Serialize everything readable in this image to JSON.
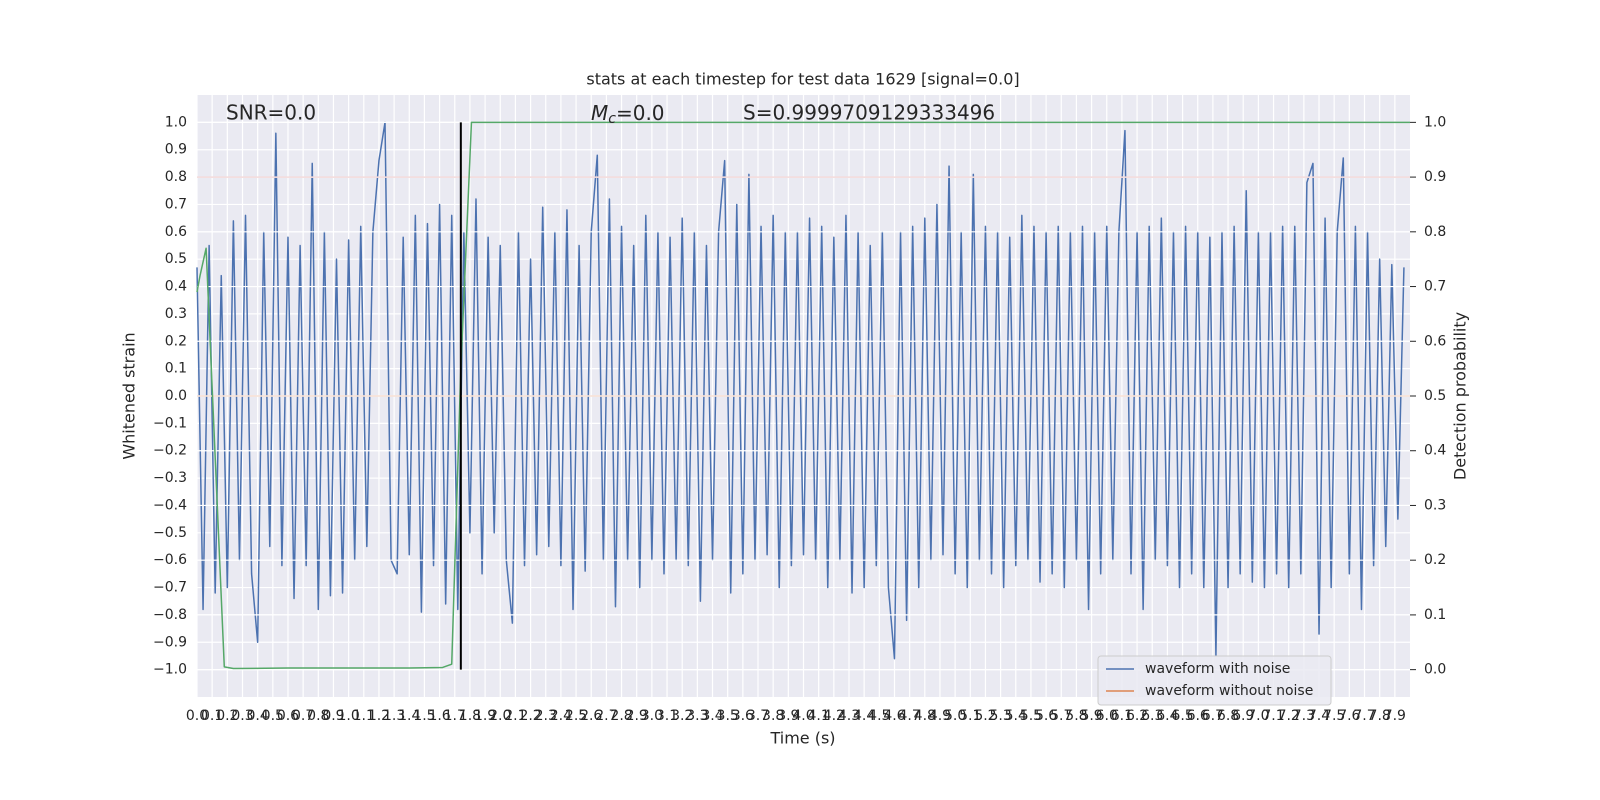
{
  "chart_data": {
    "type": "line",
    "title": "stats at each timestep for test data 1629 [signal=0.0]",
    "x_label": "Time (s)",
    "y_label": "Whitened strain",
    "y2_label": "Detection probability",
    "annotations": {
      "snr": "SNR=0.0",
      "mc_symbol": "M",
      "mc_subscript": "c",
      "mc_text": "=0.0",
      "score": "S=0.9999709129333496"
    },
    "xlim": [
      0,
      8.0
    ],
    "ylim": [
      -1.1,
      1.1
    ],
    "y2lim": [
      -0.05,
      1.05
    ],
    "grid": true,
    "legend": "lower right",
    "yticks": [
      {
        "value": -1,
        "label": "−1.0"
      },
      {
        "value": -0.9,
        "label": "−0.9"
      },
      {
        "value": -0.8,
        "label": "−0.8"
      },
      {
        "value": -0.7,
        "label": "−0.7"
      },
      {
        "value": -0.6,
        "label": "−0.6"
      },
      {
        "value": -0.5,
        "label": "−0.5"
      },
      {
        "value": -0.4,
        "label": "−0.4"
      },
      {
        "value": -0.3,
        "label": "−0.3"
      },
      {
        "value": -0.2,
        "label": "−0.2"
      },
      {
        "value": -0.1,
        "label": "−0.1"
      },
      {
        "value": 0,
        "label": "0.0"
      },
      0.1,
      0.2,
      0.3,
      0.4,
      0.5,
      0.6,
      0.7,
      0.8,
      0.9,
      {
        "value": 1,
        "label": "1.0"
      }
    ],
    "y2ticks": [
      {
        "value": 0,
        "label": "0.0"
      },
      0.1,
      0.2,
      0.3,
      0.4,
      0.5,
      0.6,
      0.7,
      0.8,
      0.9,
      {
        "value": 1,
        "label": "1.0"
      }
    ],
    "xticks": [
      {
        "value": 0,
        "label": "0.0"
      },
      0.1,
      0.2,
      0.3,
      0.4,
      0.5,
      0.6,
      0.7,
      0.8,
      0.9,
      {
        "value": 1,
        "label": "1.0"
      },
      1.1,
      1.2,
      1.3,
      1.4,
      1.5,
      1.6,
      1.7,
      1.8,
      1.9,
      {
        "value": 2,
        "label": "2.0"
      },
      2.1,
      2.2,
      2.3,
      2.4,
      2.5,
      2.6,
      2.7,
      2.8,
      2.9,
      {
        "value": 3,
        "label": "3.0"
      },
      3.1,
      3.2,
      3.3,
      3.4,
      3.5,
      3.6,
      3.7,
      3.8,
      3.9,
      {
        "value": 4,
        "label": "4.0"
      },
      4.1,
      4.2,
      4.3,
      4.4,
      4.5,
      4.6,
      4.7,
      4.8,
      4.9,
      {
        "value": 5,
        "label": "5.0"
      },
      5.1,
      5.2,
      5.3,
      5.4,
      5.5,
      5.6,
      5.7,
      5.8,
      5.9,
      {
        "value": 6,
        "label": "6.0"
      },
      6.1,
      6.2,
      6.3,
      6.4,
      6.5,
      6.6,
      6.7,
      6.8,
      6.9,
      {
        "value": 7,
        "label": "7.0"
      },
      7.1,
      7.2,
      7.3,
      7.4,
      7.5,
      7.6,
      7.7,
      7.8,
      7.9
    ],
    "series": [
      {
        "name": "waveform with noise",
        "color": "#4c72b0",
        "x": [
          0,
          0.04,
          0.08,
          0.12,
          0.16,
          0.2,
          0.24,
          0.28,
          0.32,
          0.36,
          0.4,
          0.44,
          0.48,
          0.52,
          0.56,
          0.6,
          0.64,
          0.68,
          0.72,
          0.76,
          0.8,
          0.84,
          0.88,
          0.92,
          0.96,
          1,
          1.04,
          1.08,
          1.12,
          1.16,
          1.2,
          1.24,
          1.28,
          1.32,
          1.36,
          1.4,
          1.44,
          1.48,
          1.52,
          1.56,
          1.6,
          1.64,
          1.68,
          1.72,
          1.76,
          1.8,
          1.84,
          1.88,
          1.92,
          1.96,
          2,
          2.04,
          2.08,
          2.12,
          2.16,
          2.2,
          2.24,
          2.28,
          2.32,
          2.36,
          2.4,
          2.44,
          2.48,
          2.52,
          2.56,
          2.6,
          2.64,
          2.68,
          2.72,
          2.76,
          2.8,
          2.84,
          2.88,
          2.92,
          2.96,
          3,
          3.04,
          3.08,
          3.12,
          3.16,
          3.2,
          3.24,
          3.28,
          3.32,
          3.36,
          3.4,
          3.44,
          3.48,
          3.52,
          3.56,
          3.6,
          3.64,
          3.68,
          3.72,
          3.76,
          3.8,
          3.84,
          3.88,
          3.92,
          3.96,
          4,
          4.04,
          4.08,
          4.12,
          4.16,
          4.2,
          4.24,
          4.28,
          4.32,
          4.36,
          4.4,
          4.44,
          4.48,
          4.52,
          4.56,
          4.6,
          4.64,
          4.68,
          4.72,
          4.76,
          4.8,
          4.84,
          4.88,
          4.92,
          4.96,
          5,
          5.04,
          5.08,
          5.12,
          5.16,
          5.2,
          5.24,
          5.28,
          5.32,
          5.36,
          5.4,
          5.44,
          5.48,
          5.52,
          5.56,
          5.6,
          5.64,
          5.68,
          5.72,
          5.76,
          5.8,
          5.84,
          5.88,
          5.92,
          5.96,
          6,
          6.04,
          6.08,
          6.12,
          6.16,
          6.2,
          6.24,
          6.28,
          6.32,
          6.36,
          6.4,
          6.44,
          6.48,
          6.52,
          6.56,
          6.6,
          6.64,
          6.68,
          6.72,
          6.76,
          6.8,
          6.84,
          6.88,
          6.92,
          6.96,
          7,
          7.04,
          7.08,
          7.12,
          7.16,
          7.2,
          7.24,
          7.28,
          7.32,
          7.36,
          7.4,
          7.44,
          7.48,
          7.52,
          7.56,
          7.6,
          7.64,
          7.68,
          7.72,
          7.76,
          7.8,
          7.84,
          7.88,
          7.92,
          7.96
        ],
        "values": [
          0.47,
          -0.78,
          0.55,
          -0.72,
          0.44,
          -0.7,
          0.64,
          -0.6,
          0.66,
          -0.65,
          -0.9,
          0.6,
          -0.55,
          0.96,
          -0.62,
          0.58,
          -0.74,
          0.55,
          -0.62,
          0.85,
          -0.78,
          0.6,
          -0.73,
          0.5,
          -0.72,
          0.57,
          -0.6,
          0.62,
          -0.55,
          0.6,
          0.86,
          1.0,
          -0.6,
          -0.65,
          0.58,
          -0.58,
          0.66,
          -0.79,
          0.63,
          -0.62,
          0.7,
          -0.76,
          0.66,
          -0.78,
          0.6,
          -0.5,
          0.72,
          -0.65,
          0.58,
          -0.5,
          0.55,
          -0.6,
          -0.83,
          0.6,
          -0.62,
          0.5,
          -0.58,
          0.69,
          -0.55,
          0.6,
          -0.62,
          0.68,
          -0.78,
          0.55,
          -0.64,
          0.6,
          0.88,
          -0.6,
          0.72,
          -0.77,
          0.62,
          -0.6,
          0.55,
          -0.7,
          0.66,
          -0.6,
          0.6,
          -0.65,
          0.58,
          -0.6,
          0.65,
          -0.62,
          0.6,
          -0.75,
          0.55,
          -0.6,
          0.6,
          0.86,
          -0.72,
          0.7,
          -0.65,
          0.81,
          -0.6,
          0.62,
          -0.58,
          0.66,
          -0.7,
          0.6,
          -0.62,
          0.6,
          -0.58,
          0.65,
          -0.6,
          0.62,
          -0.7,
          0.58,
          -0.6,
          0.66,
          -0.72,
          0.6,
          -0.7,
          0.55,
          -0.62,
          0.6,
          -0.7,
          -0.96,
          0.6,
          -0.82,
          0.62,
          -0.7,
          0.65,
          -0.6,
          0.7,
          -0.58,
          0.84,
          -0.65,
          0.6,
          -0.7,
          0.81,
          -0.6,
          0.62,
          -0.65,
          0.6,
          -0.7,
          0.58,
          -0.62,
          0.66,
          -0.6,
          0.62,
          -0.68,
          0.6,
          -0.65,
          0.62,
          -0.7,
          0.6,
          -0.6,
          0.62,
          -0.78,
          0.6,
          -0.65,
          0.62,
          -0.6,
          0.6,
          0.97,
          -0.65,
          0.6,
          -0.78,
          0.62,
          -0.6,
          0.65,
          -0.62,
          0.6,
          -0.7,
          0.62,
          -0.65,
          0.6,
          -0.7,
          0.58,
          -0.95,
          0.6,
          -0.7,
          0.62,
          -0.65,
          0.75,
          -0.68,
          0.6,
          -0.7,
          0.6,
          -0.65,
          0.62,
          -0.7,
          0.62,
          -0.65,
          0.78,
          0.85,
          -0.87,
          0.65,
          -0.7,
          0.6,
          0.87,
          -0.65,
          0.62,
          -0.78,
          0.6,
          -0.62,
          0.5,
          -0.55,
          0.48,
          -0.45,
          0.47
        ]
      },
      {
        "name": "waveform without noise",
        "color": "#dd8452",
        "x": [
          0,
          8.0
        ],
        "values": [
          0,
          0
        ]
      }
    ],
    "detection": {
      "color": "#55a868",
      "axis": "y2",
      "x": [
        0,
        0.02,
        0.06,
        0.18,
        0.24,
        0.6,
        1.0,
        1.4,
        1.62,
        1.68,
        1.74,
        1.81,
        8.0
      ],
      "values": [
        0.69,
        0.72,
        0.77,
        0.005,
        0.002,
        0.003,
        0.003,
        0.003,
        0.004,
        0.01,
        0.55,
        1.0,
        1.0
      ]
    },
    "threshold": {
      "value": 0.8,
      "color": "#c44e52"
    },
    "marker_line": {
      "x": 1.74,
      "ymin": -1.0,
      "ymax": 1.0,
      "color": "#000000"
    }
  }
}
